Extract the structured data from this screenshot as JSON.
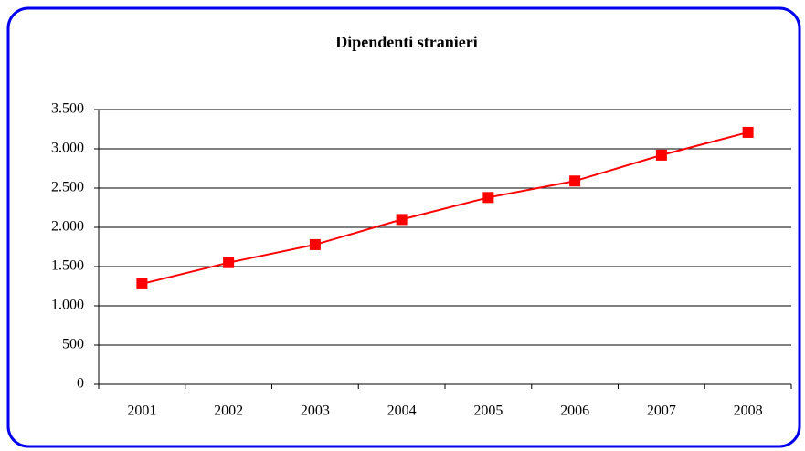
{
  "chart_data": {
    "type": "line",
    "title": "Dipendenti stranieri",
    "categories": [
      "2001",
      "2002",
      "2003",
      "2004",
      "2005",
      "2006",
      "2007",
      "2008"
    ],
    "series": [
      {
        "name": "Dipendenti stranieri",
        "color": "#ff0000",
        "values": [
          1280,
          1550,
          1780,
          2100,
          2380,
          2590,
          2920,
          3210
        ]
      }
    ],
    "ylim": [
      0,
      3500
    ],
    "yticks": [
      0,
      500,
      {
        "value": 1000,
        "label": "1.000"
      },
      {
        "value": 1500,
        "label": "1.500"
      },
      {
        "value": 2000,
        "label": "2.000"
      },
      {
        "value": 2500,
        "label": "2.500"
      },
      {
        "value": 3000,
        "label": "3.000"
      },
      {
        "value": 3500,
        "label": "3.500"
      }
    ],
    "grid": true
  }
}
